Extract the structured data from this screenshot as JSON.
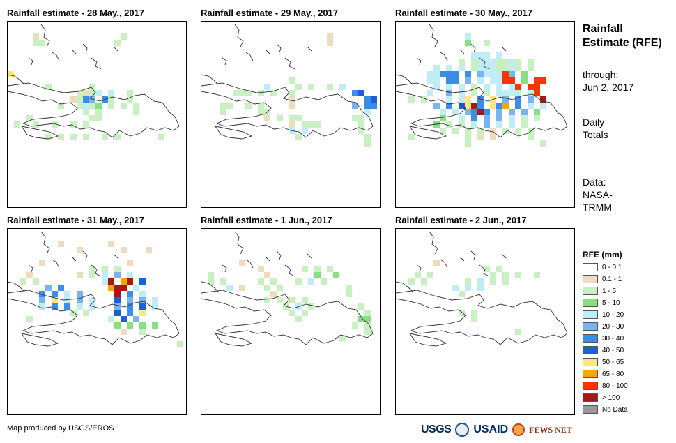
{
  "panels": [
    {
      "title": "Rainfall estimate - 28 May., 2017",
      "cells": [
        [
          0,
          "10_20"
        ],
        [
          0,
          "10_20"
        ]
      ],
      "grid": [
        "....1.............2.......2.",
        "..........................2.",
        "",
        "",
        "",
        "8...........................",
        "8.........11................",
        ".....1......1...............",
        ".......1.......1112....2....",
        "........1.1.1.14645.122.....",
        "..............15443.2.2.....",
        ".......21.1.1.12443.....3...",
        "............12111.2.....2...",
        ".1..........1111............",
        ".1.22.2.11.2122.2..2...12...",
        ".....2.2..2...2.2.......12..",
        "......................1....."
      ]
    },
    {
      "title": "Rainfall estimate - 29 May., 2017"
    },
    {
      "title": "Rainfall estimate - 30 May., 2017"
    },
    {
      "title": "Rainfall estimate - 31 May., 2017"
    },
    {
      "title": "Rainfall estimate - 1 Jun., 2017"
    },
    {
      "title": "Rainfall estimate - 2 Jun., 2017"
    }
  ],
  "side": {
    "title": "Rainfall Estimate (RFE)",
    "through_label": "through:",
    "through_date": "Jun 2, 2017",
    "totals": "Daily Totals",
    "data_label": "Data:",
    "data_src1": "NASA-",
    "data_src2": "TRMM"
  },
  "legend": {
    "title": "RFE (mm)",
    "items": [
      {
        "label": "0 - 0.1",
        "color": "#ffffff"
      },
      {
        "label": "0.1 - 1",
        "color": "#ecdcc0"
      },
      {
        "label": "1 - 5",
        "color": "#c8f0c0"
      },
      {
        "label": "5 - 10",
        "color": "#86e082"
      },
      {
        "label": "10 - 20",
        "color": "#c0ecf6"
      },
      {
        "label": "20 - 30",
        "color": "#7ab4f0"
      },
      {
        "label": "30 - 40",
        "color": "#3a8ee6"
      },
      {
        "label": "40 - 50",
        "color": "#1e5ed8"
      },
      {
        "label": "50 - 65",
        "color": "#ffe680"
      },
      {
        "label": "65 - 80",
        "color": "#ffa500"
      },
      {
        "label": "80 - 100",
        "color": "#ff3300"
      },
      {
        "label": "> 100",
        "color": "#a81616"
      },
      {
        "label": "No Data",
        "color": "#999999"
      }
    ]
  },
  "credit": "Map produced by USGS/EROS",
  "logos": {
    "usgs": "USGS",
    "usaid": "USAID",
    "fews": "FEWS NET"
  }
}
